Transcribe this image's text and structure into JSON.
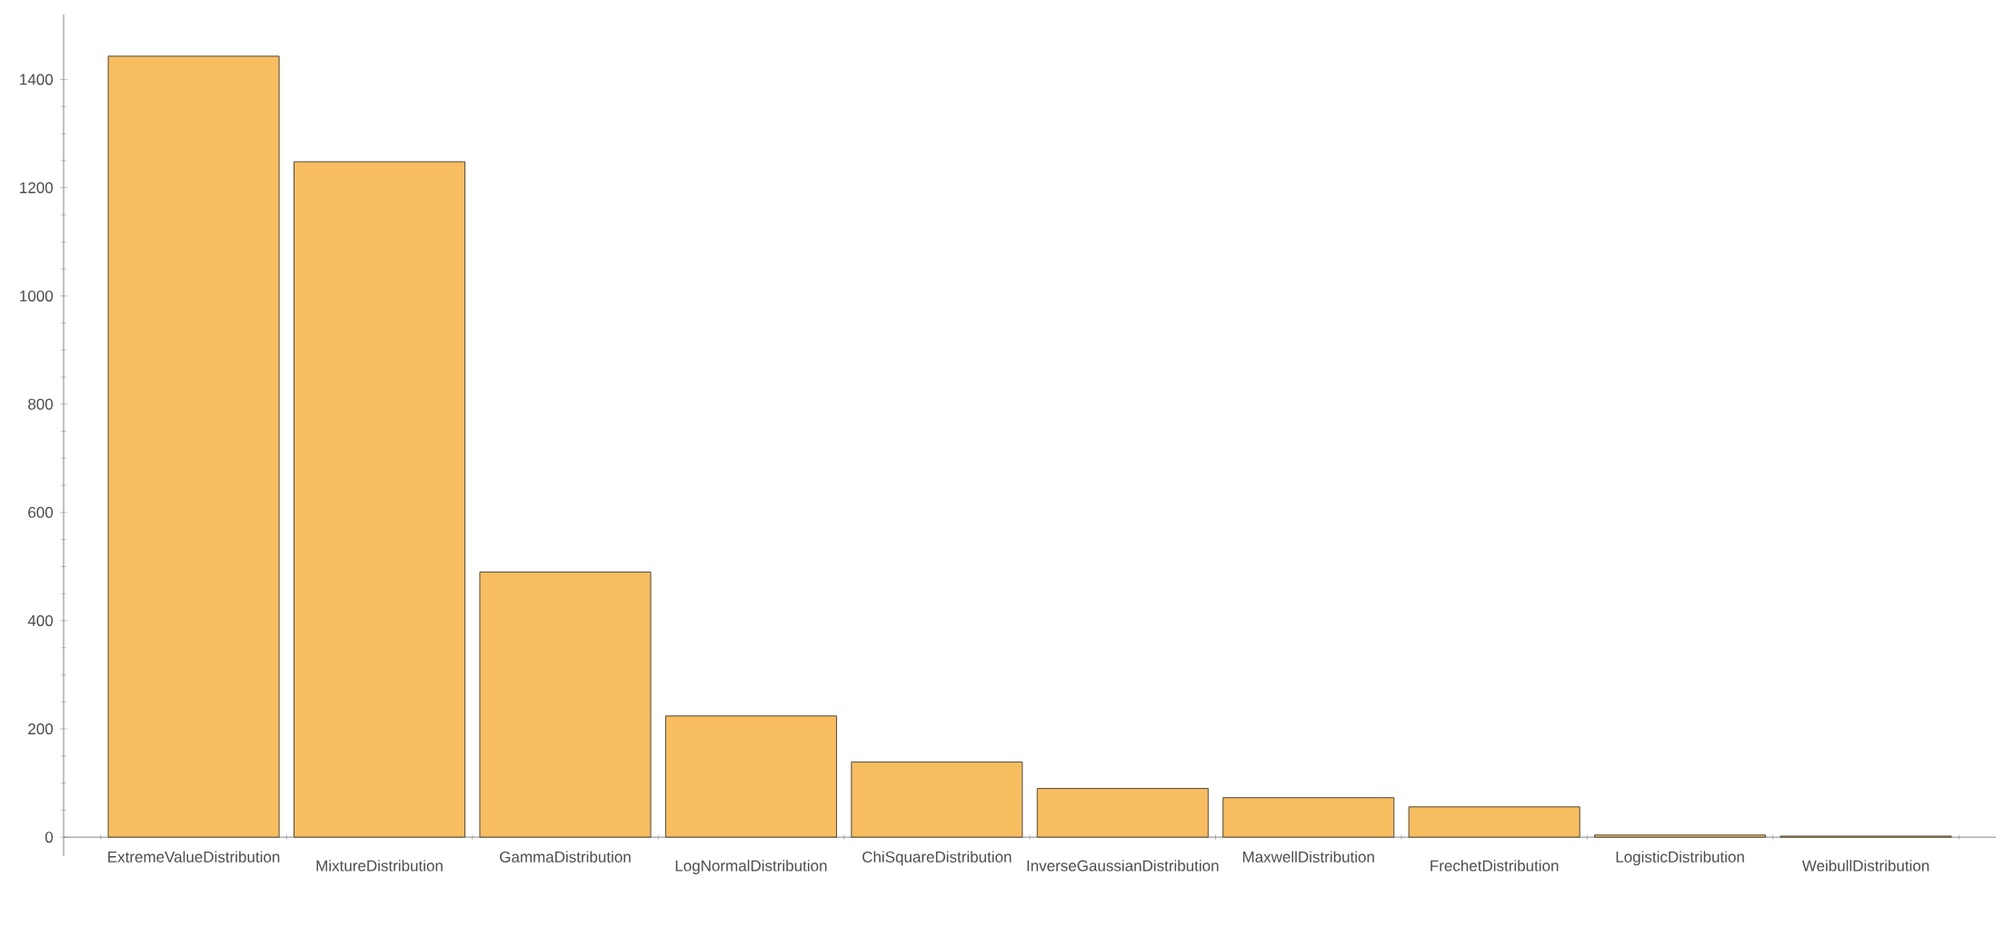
{
  "chart_data": {
    "type": "bar",
    "categories": [
      "ExtremeValueDistribution",
      "MixtureDistribution",
      "GammaDistribution",
      "LogNormalDistribution",
      "ChiSquareDistribution",
      "InverseGaussianDistribution",
      "MaxwellDistribution",
      "FrechetDistribution",
      "LogisticDistribution",
      "WeibullDistribution"
    ],
    "values": [
      1443,
      1248,
      490,
      224,
      139,
      90,
      73,
      56,
      4,
      2
    ],
    "color": "#f8bd5f",
    "ylim": [
      -35,
      1520
    ],
    "yticks": [
      0,
      200,
      400,
      600,
      800,
      1000,
      1200,
      1400
    ],
    "grid": false
  }
}
